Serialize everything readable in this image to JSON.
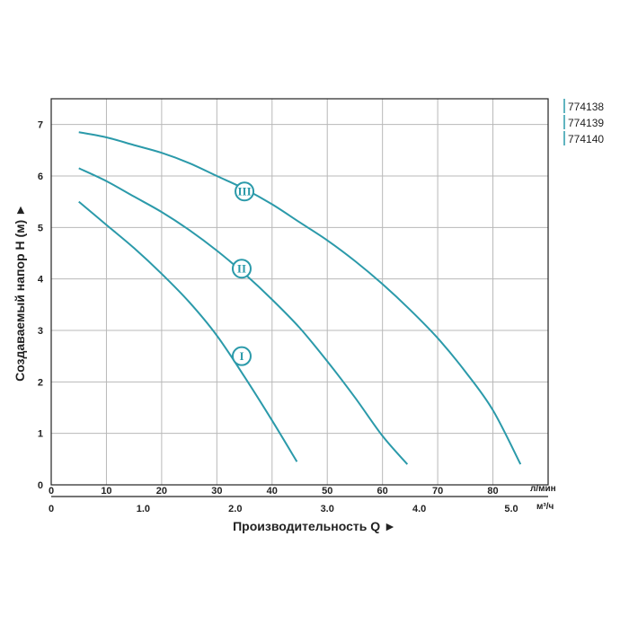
{
  "chart_data": {
    "type": "line",
    "xlabel": "Производительность Q ►",
    "ylabel": "Создаваемый напор H (м) ►",
    "x_unit": "л/мин",
    "x2_unit": "м³/ч",
    "xlim": [
      0,
      90
    ],
    "ylim": [
      0,
      7.5
    ],
    "x_ticks": [
      0,
      10,
      20,
      30,
      40,
      50,
      60,
      70,
      80
    ],
    "y_ticks": [
      0,
      1,
      2,
      3,
      4,
      5,
      6,
      7
    ],
    "x2_ticks": [
      {
        "label": "0",
        "lpm": 0
      },
      {
        "label": "1.0",
        "lpm": 16.6667
      },
      {
        "label": "2.0",
        "lpm": 33.3333
      },
      {
        "label": "3.0",
        "lpm": 50
      },
      {
        "label": "4.0",
        "lpm": 66.6667
      },
      {
        "label": "5.0",
        "lpm": 83.3333
      }
    ],
    "grid": true,
    "legend": {
      "placement": "top-right",
      "entries": [
        "774138",
        "774139",
        "774140"
      ]
    },
    "color": "#2b9aaa",
    "series": [
      {
        "name": "I",
        "x": [
          5,
          10,
          15,
          20,
          25,
          30,
          35,
          40,
          44.5
        ],
        "y": [
          5.5,
          5.05,
          4.6,
          4.1,
          3.55,
          2.9,
          2.1,
          1.25,
          0.45
        ]
      },
      {
        "name": "II",
        "x": [
          5,
          10,
          15,
          20,
          25,
          30,
          35,
          40,
          45,
          50,
          55,
          60,
          64.5
        ],
        "y": [
          6.15,
          5.9,
          5.6,
          5.3,
          4.95,
          4.55,
          4.1,
          3.6,
          3.05,
          2.4,
          1.7,
          0.95,
          0.4
        ]
      },
      {
        "name": "III",
        "x": [
          5,
          10,
          15,
          20,
          25,
          30,
          35,
          40,
          45,
          50,
          55,
          60,
          65,
          70,
          75,
          80,
          85
        ],
        "y": [
          6.85,
          6.75,
          6.6,
          6.45,
          6.25,
          6.0,
          5.75,
          5.45,
          5.1,
          4.75,
          4.35,
          3.9,
          3.4,
          2.85,
          2.2,
          1.45,
          0.4
        ]
      }
    ],
    "curve_labels": [
      {
        "series": "I",
        "text": "I",
        "x": 34.5,
        "y": 2.5
      },
      {
        "series": "II",
        "text": "II",
        "x": 34.5,
        "y": 4.2
      },
      {
        "series": "III",
        "text": "III",
        "x": 35,
        "y": 5.7
      }
    ]
  }
}
